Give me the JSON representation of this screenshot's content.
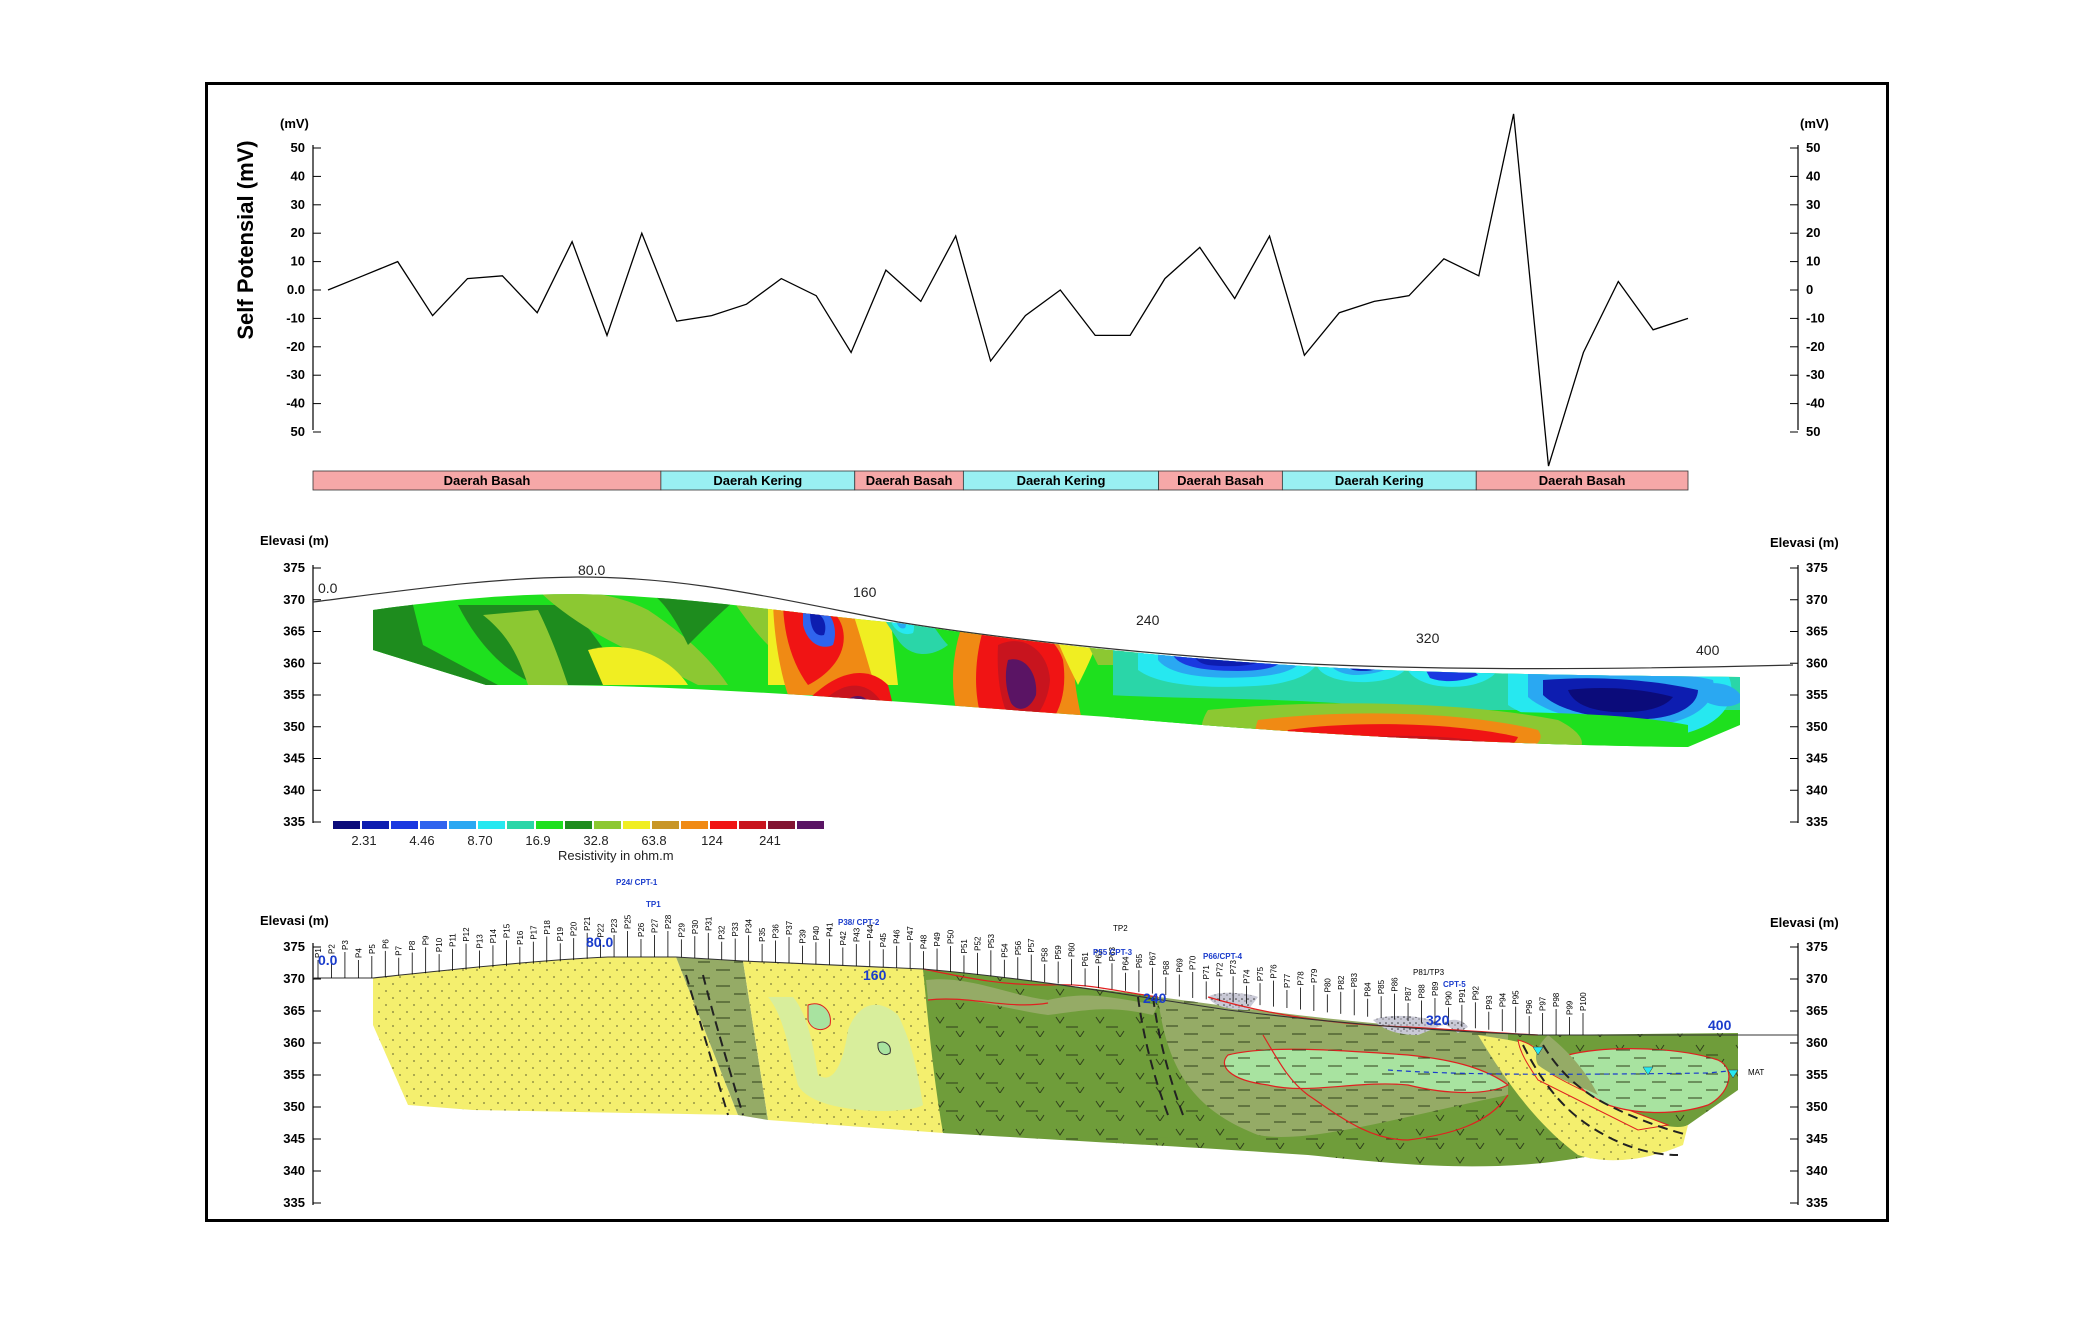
{
  "chart_data": [
    {
      "type": "line",
      "ylabel": "Self Potensial (mV)",
      "unit_left": "(mV)",
      "unit_right": "(mV)",
      "yticks": [
        "50",
        "40",
        "30",
        "20",
        "10",
        "0.0",
        "-10",
        "-20",
        "-30",
        "-40",
        "50"
      ],
      "yticks_right": [
        "50",
        "40",
        "30",
        "20",
        "10",
        "0",
        "-10",
        "-20",
        "-30",
        "-40",
        "50"
      ],
      "ylim": [
        -50,
        50
      ],
      "values": [
        0,
        5,
        10,
        -9,
        4,
        5,
        -8,
        17,
        -16,
        20,
        -11,
        -9,
        -5,
        4,
        -2,
        -22,
        7,
        -4,
        19,
        -25,
        -9,
        0,
        -16,
        -16,
        4,
        15,
        -3,
        19,
        -23,
        -8,
        -4,
        -2,
        11,
        5,
        62,
        -62,
        -22,
        3,
        -14,
        -10
      ],
      "zones": [
        {
          "label": "Daerah Basah",
          "type": "wet",
          "start": 0,
          "end": 0.253
        },
        {
          "label": "Daerah Kering",
          "type": "dry",
          "start": 0.253,
          "end": 0.394
        },
        {
          "label": "Daerah Basah",
          "type": "wet",
          "start": 0.394,
          "end": 0.473
        },
        {
          "label": "Daerah Kering",
          "type": "dry",
          "start": 0.473,
          "end": 0.615
        },
        {
          "label": "Daerah Basah",
          "type": "wet",
          "start": 0.615,
          "end": 0.705
        },
        {
          "label": "Daerah Kering",
          "type": "dry",
          "start": 0.705,
          "end": 0.846
        },
        {
          "label": "Daerah Basah",
          "type": "wet",
          "start": 0.846,
          "end": 1.0
        }
      ],
      "colors": {
        "wet": "#f6a8a8",
        "dry": "#99f0f2",
        "line": "#000000"
      }
    },
    {
      "type": "heatmap",
      "ylabel_left": "Elevasi (m)",
      "ylabel_right": "Elevasi (m)",
      "yticks": [
        "375",
        "370",
        "365",
        "360",
        "355",
        "350",
        "345",
        "340",
        "335"
      ],
      "ylim": [
        335,
        375
      ],
      "xlim": [
        0,
        400
      ],
      "distance_labels": [
        "0.0",
        "80.0",
        "160",
        "240",
        "320",
        "400"
      ],
      "legend_values": [
        "2.31",
        "4.46",
        "8.70",
        "16.9",
        "32.8",
        "63.8",
        "124",
        "241"
      ],
      "legend_title": "Resistivity in ohm.m",
      "colorscale": [
        "#0b0b7a",
        "#0d1db0",
        "#1a38e0",
        "#2f64ee",
        "#2aa8f2",
        "#26e8f0",
        "#2ad6a8",
        "#1ee01e",
        "#1e8c1e",
        "#8cc832",
        "#f0ee22",
        "#c89628",
        "#f08a14",
        "#f01414",
        "#c8141e",
        "#821432",
        "#5a1464"
      ]
    },
    {
      "type": "table",
      "ylabel_left": "Elevasi (m)",
      "ylabel_right": "Elevasi (m)",
      "yticks": [
        "375",
        "370",
        "365",
        "360",
        "355",
        "350",
        "345",
        "340",
        "335"
      ],
      "distance_labels": [
        "0.0",
        "80.0",
        "160",
        "240",
        "320",
        "400"
      ],
      "annotations": [
        "P24/\nCPT-1",
        "TP1",
        "P38/\nCPT-2",
        "P55\nCPT-3",
        "TP2",
        "P66/CPT-4",
        "P81/TP3",
        "CPT-5",
        "MAT"
      ],
      "point_labels": [
        "P1",
        "P2",
        "P3",
        "P4",
        "P5",
        "P6",
        "P7",
        "P8",
        "P9",
        "P10",
        "P11",
        "P12",
        "P13",
        "P14",
        "P15",
        "P16",
        "P17",
        "P18",
        "P19",
        "P20",
        "P21",
        "P22",
        "P23",
        "P25",
        "P26",
        "P27",
        "P28",
        "P29",
        "P30",
        "P31",
        "P32",
        "P33",
        "P34",
        "P35",
        "P36",
        "P37",
        "P39",
        "P40",
        "P41",
        "P42",
        "P43",
        "P44",
        "P45",
        "P46",
        "P47",
        "P48",
        "P49",
        "P50",
        "P51",
        "P52",
        "P53",
        "P54",
        "P56",
        "P57",
        "P58",
        "P59",
        "P60",
        "P61",
        "P62",
        "P63",
        "P64",
        "P65",
        "P67",
        "P68",
        "P69",
        "P70",
        "P71",
        "P72",
        "P73",
        "P74",
        "P75",
        "P76",
        "P77",
        "P78",
        "P79",
        "P80",
        "P82",
        "P83",
        "P84",
        "P85",
        "P86",
        "P87",
        "P88",
        "P89",
        "P90",
        "P91",
        "P92",
        "P93",
        "P94",
        "P95",
        "P96",
        "P97",
        "P98",
        "P99",
        "P100"
      ],
      "colors": {
        "sand": "#f4ef6e",
        "light": "#d8ee9c",
        "dark": "#6f9d3a",
        "mid": "#95ab66",
        "lens": "#a8e3a0",
        "contact": "#e02020",
        "water": "#1a3ccc"
      }
    }
  ]
}
